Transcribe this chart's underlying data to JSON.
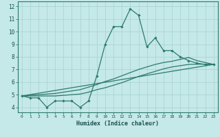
{
  "xlabel": "Humidex (Indice chaleur)",
  "bg_color": "#c5e8e8",
  "grid_color": "#a8d0d0",
  "line_color": "#2a7a6a",
  "xlim": [
    -0.5,
    23.5
  ],
  "ylim": [
    3.6,
    12.4
  ],
  "xticks": [
    0,
    1,
    2,
    3,
    4,
    5,
    6,
    7,
    8,
    9,
    10,
    11,
    12,
    13,
    14,
    15,
    16,
    17,
    18,
    19,
    20,
    21,
    22,
    23
  ],
  "yticks": [
    4,
    5,
    6,
    7,
    8,
    9,
    10,
    11,
    12
  ],
  "line1_x": [
    0,
    1,
    2,
    3,
    4,
    5,
    6,
    7,
    8,
    9,
    10,
    11,
    12,
    13,
    14,
    15,
    16,
    17,
    18,
    19,
    20,
    21,
    22,
    23
  ],
  "line1_y": [
    4.9,
    4.75,
    4.75,
    4.0,
    4.5,
    4.5,
    4.5,
    4.0,
    4.5,
    6.5,
    9.0,
    10.4,
    10.4,
    11.8,
    11.3,
    8.8,
    9.5,
    8.5,
    8.5,
    8.0,
    7.7,
    7.5,
    7.4,
    7.4
  ],
  "line2_x": [
    0,
    23
  ],
  "line2_y": [
    4.9,
    7.4
  ],
  "line3_x": [
    0,
    1,
    2,
    3,
    4,
    5,
    6,
    7,
    8,
    9,
    10,
    11,
    12,
    13,
    14,
    15,
    16,
    17,
    18,
    19,
    20,
    21,
    22,
    23
  ],
  "line3_y": [
    4.9,
    4.95,
    5.0,
    5.05,
    5.1,
    5.2,
    5.3,
    5.4,
    5.6,
    5.8,
    6.05,
    6.25,
    6.5,
    6.75,
    7.0,
    7.2,
    7.4,
    7.55,
    7.65,
    7.8,
    7.95,
    7.7,
    7.55,
    7.4
  ],
  "line4_x": [
    0,
    1,
    2,
    3,
    4,
    5,
    6,
    7,
    8,
    9,
    10,
    11,
    12,
    13,
    14,
    15,
    16,
    17,
    18,
    19,
    20,
    21,
    22,
    23
  ],
  "line4_y": [
    4.9,
    4.9,
    4.9,
    4.9,
    4.9,
    4.95,
    5.0,
    5.05,
    5.2,
    5.4,
    5.55,
    5.75,
    5.95,
    6.2,
    6.45,
    6.65,
    6.85,
    7.05,
    7.2,
    7.3,
    7.4,
    7.42,
    7.42,
    7.4
  ]
}
